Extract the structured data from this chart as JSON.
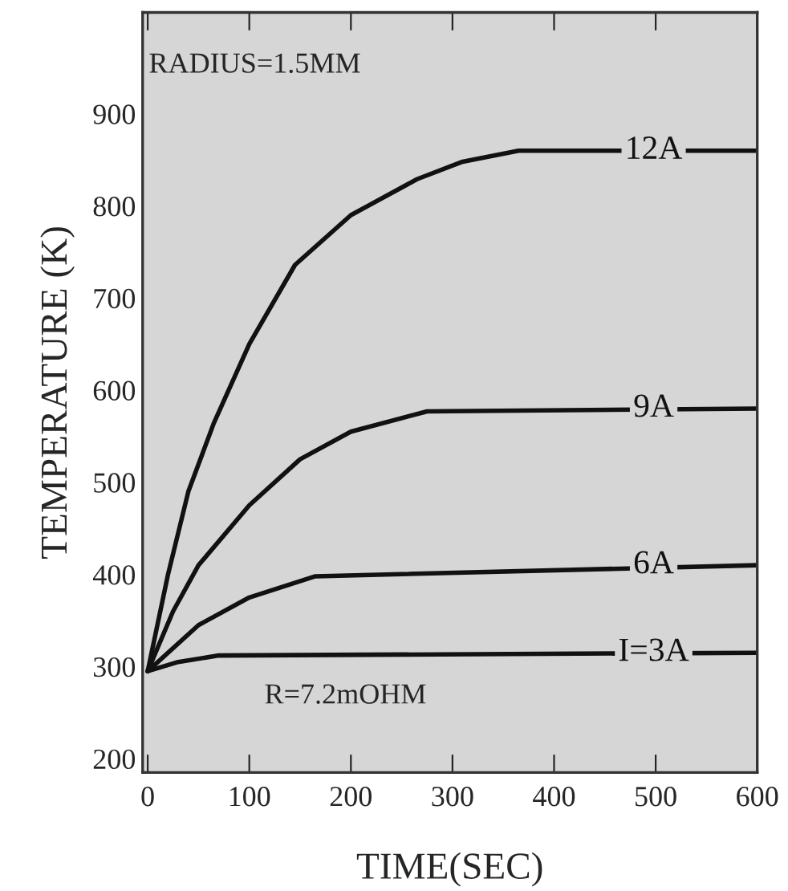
{
  "chart_data": {
    "type": "line",
    "xlabel": "TIME(SEC)",
    "ylabel": "TEMPERATURE (K)",
    "xlim": [
      -5,
      600
    ],
    "ylim": [
      185,
      1010
    ],
    "xticks": [
      0,
      100,
      200,
      300,
      400,
      500,
      600
    ],
    "yticks": [
      200,
      300,
      400,
      500,
      600,
      700,
      800,
      900
    ],
    "grid": false,
    "legend": false,
    "marker": "none",
    "line_style": "solid",
    "annotations": [
      "RADIUS=1.5MM",
      "R=7.2mOHM"
    ],
    "series": [
      {
        "name": "12A",
        "color": "#111111",
        "x": [
          0,
          20,
          40,
          65,
          100,
          145,
          200,
          265,
          310,
          365,
          600
        ],
        "values": [
          295,
          400,
          490,
          564,
          650,
          736,
          790,
          829,
          848,
          860,
          860
        ]
      },
      {
        "name": "9A",
        "color": "#111111",
        "x": [
          0,
          25,
          50,
          100,
          150,
          200,
          275,
          600
        ],
        "values": [
          295,
          360,
          410,
          475,
          525,
          555,
          577,
          580
        ]
      },
      {
        "name": "6A",
        "color": "#111111",
        "x": [
          0,
          50,
          100,
          165,
          600
        ],
        "values": [
          295,
          345,
          375,
          398,
          410
        ]
      },
      {
        "name": "I=3A",
        "color": "#111111",
        "x": [
          0,
          30,
          70,
          600
        ],
        "values": [
          295,
          305,
          312,
          315
        ]
      }
    ]
  }
}
